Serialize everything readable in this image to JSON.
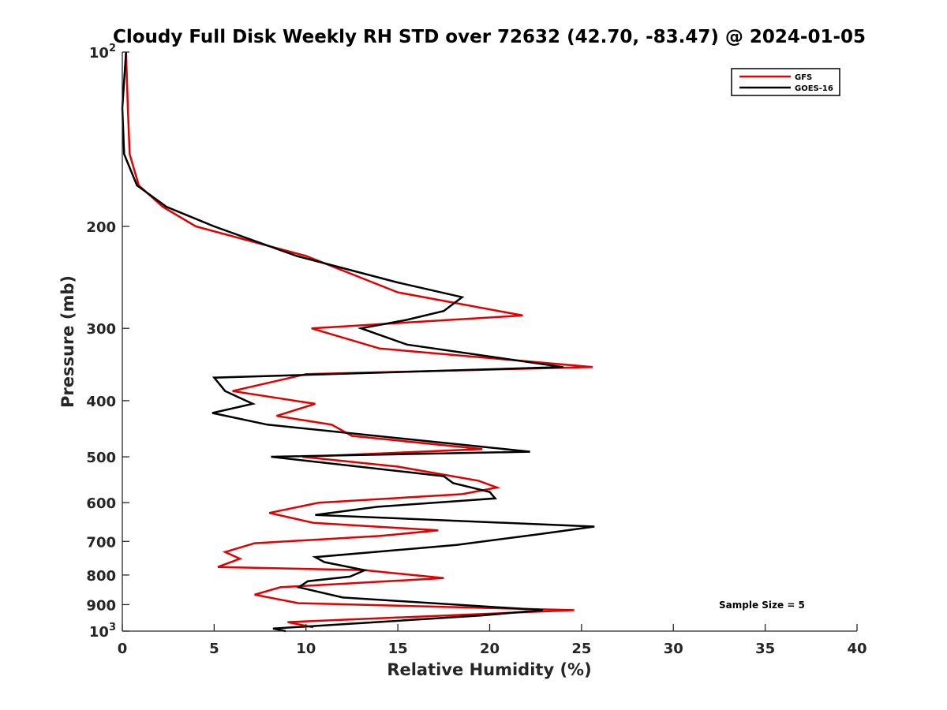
{
  "chart_data": {
    "type": "line",
    "title": "Cloudy Full Disk Weekly RH STD over 72632 (42.70, -83.47) @ 2024-01-05",
    "xlabel": "Relative Humidity (%)",
    "ylabel": "Pressure (mb)",
    "xlim": [
      0,
      40
    ],
    "ylim": [
      1000,
      100
    ],
    "yscale": "log",
    "y_reversed": true,
    "x_ticks": [
      "0",
      "5",
      "10",
      "15",
      "20",
      "25",
      "30",
      "35",
      "40"
    ],
    "y_ticks": [
      {
        "value": 100,
        "base": "10",
        "exp": "2"
      },
      {
        "value": 200,
        "label": "200"
      },
      {
        "value": 300,
        "label": "300"
      },
      {
        "value": 400,
        "label": "400"
      },
      {
        "value": 500,
        "label": "500"
      },
      {
        "value": 600,
        "label": "600"
      },
      {
        "value": 700,
        "label": "700"
      },
      {
        "value": 800,
        "label": "800"
      },
      {
        "value": 900,
        "label": "900"
      },
      {
        "value": 1000,
        "base": "10",
        "exp": "3"
      }
    ],
    "legend_position": "top-right",
    "grid": false,
    "annotation": "Sample Size = 5",
    "series": [
      {
        "name": "GFS",
        "color": "#e00000",
        "points": [
          [
            0.2,
            100
          ],
          [
            0.3,
            125
          ],
          [
            0.4,
            150
          ],
          [
            0.9,
            170
          ],
          [
            2.2,
            185
          ],
          [
            4,
            200
          ],
          [
            10,
            225
          ],
          [
            15,
            260
          ],
          [
            21.8,
            285
          ],
          [
            10.3,
            300
          ],
          [
            14,
            325
          ],
          [
            25.6,
            350
          ],
          [
            10,
            360
          ],
          [
            6,
            385
          ],
          [
            10.5,
            405
          ],
          [
            8.4,
            425
          ],
          [
            11.4,
            440
          ],
          [
            12.5,
            460
          ],
          [
            19.6,
            485
          ],
          [
            9.8,
            500
          ],
          [
            15,
            520
          ],
          [
            19.4,
            550
          ],
          [
            20.4,
            565
          ],
          [
            18.5,
            580
          ],
          [
            10.7,
            600
          ],
          [
            8,
            625
          ],
          [
            10.4,
            650
          ],
          [
            17.2,
            670
          ],
          [
            14,
            685
          ],
          [
            7.2,
            705
          ],
          [
            5.6,
            730
          ],
          [
            6.4,
            750
          ],
          [
            5.2,
            775
          ],
          [
            13.2,
            785
          ],
          [
            17.5,
            810
          ],
          [
            8.6,
            840
          ],
          [
            7.2,
            865
          ],
          [
            9.6,
            895
          ],
          [
            24.6,
            920
          ],
          [
            9,
            965
          ],
          [
            10.4,
            985
          ]
        ]
      },
      {
        "name": "GOES-16",
        "color": "#000000",
        "points": [
          [
            0.2,
            100
          ],
          [
            0,
            125
          ],
          [
            0.1,
            150
          ],
          [
            0.8,
            170
          ],
          [
            2.4,
            185
          ],
          [
            5,
            200
          ],
          [
            9.5,
            225
          ],
          [
            15,
            250
          ],
          [
            18.5,
            265
          ],
          [
            17.5,
            280
          ],
          [
            15.5,
            290
          ],
          [
            13,
            300
          ],
          [
            15.5,
            320
          ],
          [
            24,
            350
          ],
          [
            5,
            365
          ],
          [
            5.6,
            385
          ],
          [
            7.1,
            405
          ],
          [
            4.9,
            420
          ],
          [
            7.9,
            440
          ],
          [
            22.2,
            490
          ],
          [
            8.1,
            500
          ],
          [
            17.5,
            540
          ],
          [
            18,
            555
          ],
          [
            20,
            575
          ],
          [
            20.3,
            590
          ],
          [
            13.9,
            610
          ],
          [
            10.5,
            630
          ],
          [
            25.7,
            660
          ],
          [
            22.7,
            680
          ],
          [
            18.2,
            710
          ],
          [
            10.5,
            745
          ],
          [
            11,
            760
          ],
          [
            13.2,
            785
          ],
          [
            12.4,
            805
          ],
          [
            10.1,
            820
          ],
          [
            9.6,
            840
          ],
          [
            12,
            875
          ],
          [
            22.9,
            920
          ],
          [
            19.5,
            940
          ],
          [
            8.2,
            990
          ],
          [
            8.9,
            1000
          ]
        ]
      }
    ]
  }
}
